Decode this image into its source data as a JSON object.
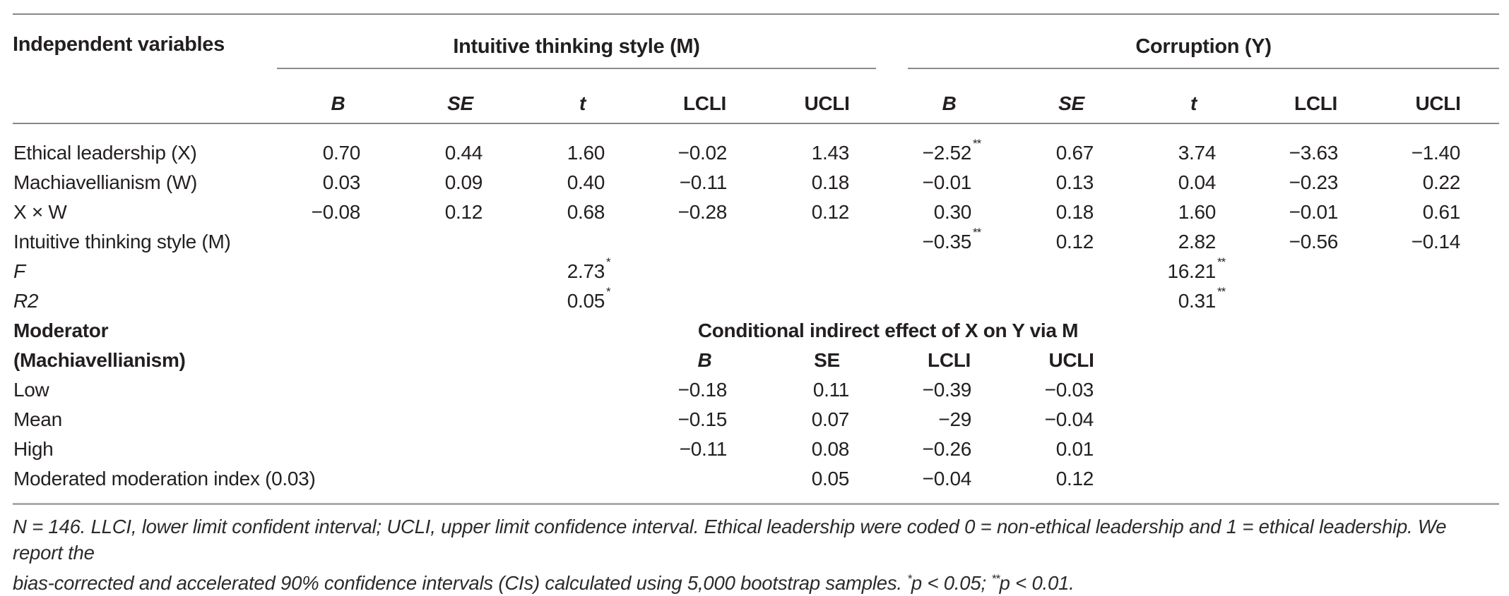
{
  "table": {
    "corner_label": "Independent variables",
    "groups": [
      "Intuitive thinking style (M)",
      "Corruption (Y)"
    ],
    "sub_headers": [
      {
        "t": "B",
        "italic": true
      },
      {
        "t": "SE",
        "italic": true
      },
      {
        "t": "t",
        "italic": true
      },
      {
        "t": "LCLI"
      },
      {
        "t": "UCLI"
      },
      {
        "t": "B",
        "italic": true
      },
      {
        "t": "SE",
        "italic": true
      },
      {
        "t": "t",
        "italic": true
      },
      {
        "t": "LCLI"
      },
      {
        "t": "UCLI"
      }
    ],
    "rows": [
      {
        "label": "Ethical leadership (X)",
        "cells": [
          "0.70",
          "0.44",
          "1.60",
          "−0.02",
          "1.43",
          {
            "v": "−2.52",
            "sup": "**"
          },
          "0.67",
          "3.74",
          "−3.63",
          "−1.40"
        ]
      },
      {
        "label": "Machiavellianism (W)",
        "cells": [
          "0.03",
          "0.09",
          "0.40",
          "−0.11",
          "0.18",
          "−0.01",
          "0.13",
          "0.04",
          "−0.23",
          "0.22"
        ]
      },
      {
        "label": "X × W",
        "cells": [
          "−0.08",
          "0.12",
          "0.68",
          "−0.28",
          "0.12",
          "0.30",
          "0.18",
          "1.60",
          "−0.01",
          "0.61"
        ]
      },
      {
        "label": "Intuitive thinking style (M)",
        "cells": [
          "",
          "",
          "",
          "",
          "",
          {
            "v": "−0.35",
            "sup": "**"
          },
          "0.12",
          "2.82",
          "−0.56",
          "−0.14"
        ]
      },
      {
        "label": "F",
        "italic": true,
        "cells": [
          "",
          "",
          {
            "v": "2.73",
            "sup": "*"
          },
          "",
          "",
          "",
          "",
          {
            "v": "16.21",
            "sup": "**"
          },
          "",
          ""
        ]
      },
      {
        "label": "R2",
        "italic": true,
        "cells": [
          "",
          "",
          {
            "v": "0.05",
            "sup": "*"
          },
          "",
          "",
          "",
          "",
          {
            "v": "0.31",
            "sup": "**"
          },
          "",
          ""
        ]
      }
    ],
    "moderator": {
      "label_line1": "Moderator",
      "label_line2": "(Machiavellianism)",
      "span_header": "Conditional indirect effect of X on Y via M",
      "sub_headers": [
        {
          "t": "B",
          "italic": true
        },
        {
          "t": "SE"
        },
        {
          "t": "LCLI"
        },
        {
          "t": "UCLI"
        }
      ],
      "rows": [
        {
          "label": "Low",
          "cells": [
            "−0.18",
            "0.11",
            "−0.39",
            "−0.03"
          ]
        },
        {
          "label": "Mean",
          "cells": [
            "−0.15",
            "0.07",
            "−29",
            "−0.04"
          ]
        },
        {
          "label": "High",
          "cells": [
            "−0.11",
            "0.08",
            "−0.26",
            "0.01"
          ]
        },
        {
          "label": "Moderated moderation index (0.03)",
          "cells": [
            "",
            "0.05",
            "−0.04",
            "0.12"
          ]
        }
      ]
    },
    "footnote": {
      "line1": "N = 146. LLCI, lower limit confident interval; UCLI, upper limit confidence interval. Ethical leadership were coded 0 = non-ethical leadership and 1 = ethical leadership. We report the",
      "line2_parts": [
        {
          "t": "bias-corrected and accelerated 90% confidence intervals (CIs) calculated using 5,000 bootstrap samples. "
        },
        {
          "sup": "*"
        },
        {
          "t": "p < 0.05; "
        },
        {
          "sup": "**"
        },
        {
          "t": "p < 0.01."
        }
      ]
    },
    "colors": {
      "text": "#231f20",
      "rule_dark": "#87888a",
      "rule_light": "#a9abad"
    }
  }
}
